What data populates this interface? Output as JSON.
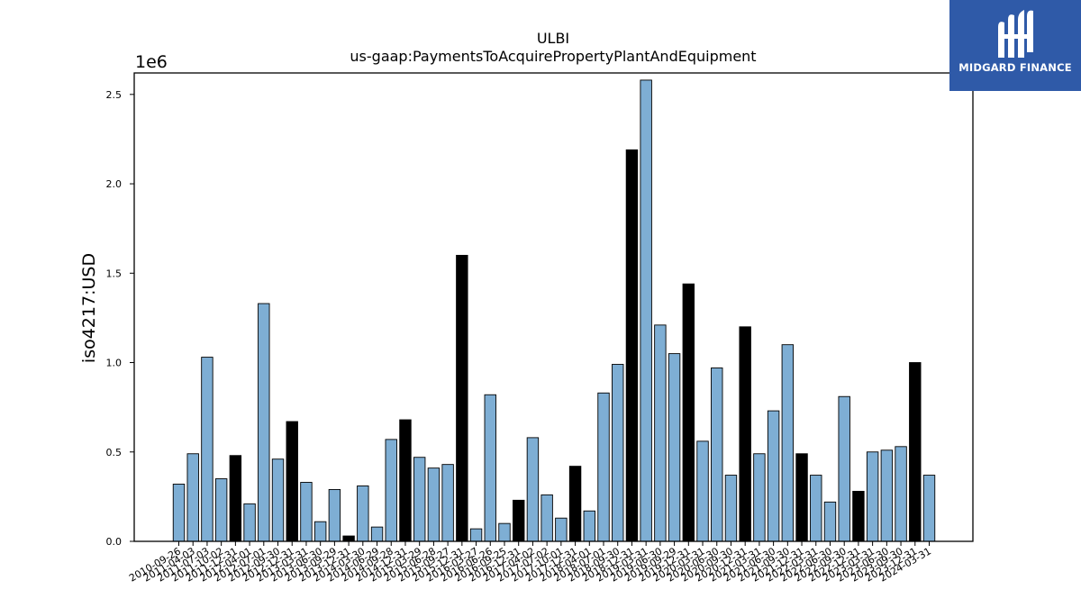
{
  "chart_data": {
    "type": "bar",
    "title": "ULBI",
    "subtitle": "us-gaap:PaymentsToAcquirePropertyPlantAndEquipment",
    "ylabel": "iso4217:USD",
    "xlabel": "",
    "y_scale_label": "1e6",
    "ylim": [
      0,
      2.62
    ],
    "yticks": [
      0.0,
      0.5,
      1.0,
      1.5,
      2.0,
      2.5
    ],
    "ytick_labels": [
      "0.0",
      "0.5",
      "1.0",
      "1.5",
      "2.0",
      "2.5"
    ],
    "grid": false,
    "colors": {
      "quarter": "#7eaed4",
      "annual": "#000000",
      "edge": "#000000"
    },
    "categories": [
      "2010-09-26",
      "2011-04-03",
      "2011-07-03",
      "2011-10-02",
      "2011-12-31",
      "2012-04-01",
      "2012-07-01",
      "2012-09-30",
      "2012-12-31",
      "2013-03-31",
      "2013-06-30",
      "2013-09-29",
      "2013-12-31",
      "2014-03-30",
      "2014-06-29",
      "2014-09-28",
      "2014-12-31",
      "2015-03-29",
      "2015-06-28",
      "2015-09-27",
      "2015-12-31",
      "2016-03-27",
      "2016-06-26",
      "2016-09-25",
      "2016-12-31",
      "2017-04-02",
      "2017-07-02",
      "2017-10-01",
      "2017-12-31",
      "2018-04-01",
      "2018-07-01",
      "2018-09-30",
      "2018-12-31",
      "2019-03-31",
      "2019-06-30",
      "2019-09-29",
      "2019-12-31",
      "2020-03-31",
      "2020-06-30",
      "2020-09-30",
      "2020-12-31",
      "2021-03-31",
      "2021-06-30",
      "2021-09-30",
      "2021-12-31",
      "2022-03-31",
      "2022-06-30",
      "2022-09-30",
      "2022-12-31",
      "2023-03-31",
      "2023-06-30",
      "2023-09-30",
      "2023-12-31",
      "2024-03-31"
    ],
    "series": [
      {
        "values": [
          0.32,
          0.49,
          1.03,
          0.35,
          0.48,
          0.21,
          1.33,
          0.46,
          0.67,
          0.33,
          0.11,
          0.29,
          0.03,
          0.31,
          0.08,
          0.57,
          0.68,
          0.47,
          0.41,
          0.43,
          1.6,
          0.07,
          0.82,
          0.1,
          0.23,
          0.58,
          0.26,
          0.13,
          0.42,
          0.17,
          0.83,
          0.99,
          2.19,
          2.58,
          1.21,
          1.05,
          1.44,
          0.56,
          0.97,
          0.37,
          1.2,
          0.49,
          0.73,
          1.1,
          0.49,
          0.37,
          0.22,
          0.81,
          0.28,
          0.5,
          0.51,
          0.53,
          1.0,
          0.37
        ],
        "annual_flags": [
          0,
          0,
          0,
          0,
          1,
          0,
          0,
          0,
          1,
          0,
          0,
          0,
          1,
          0,
          0,
          0,
          1,
          0,
          0,
          0,
          1,
          0,
          0,
          0,
          1,
          0,
          0,
          0,
          1,
          0,
          0,
          0,
          1,
          0,
          0,
          0,
          1,
          0,
          0,
          0,
          1,
          0,
          0,
          0,
          1,
          0,
          0,
          0,
          1,
          0,
          0,
          0,
          1,
          0
        ]
      }
    ]
  },
  "logo": {
    "text": "MIDGARD FINANCE",
    "icon": "midgard-logo-icon",
    "color": "#2f5aa8"
  }
}
